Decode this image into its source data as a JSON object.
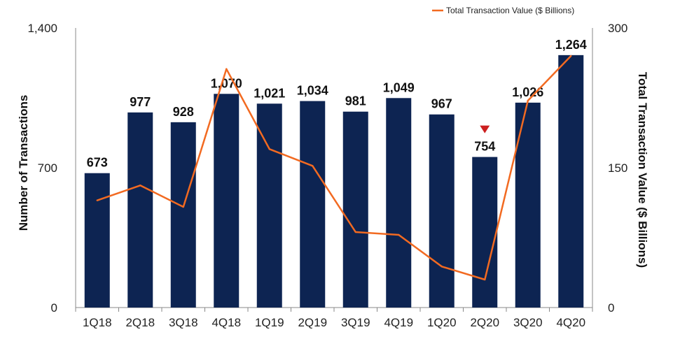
{
  "chart_data": {
    "type": "bar",
    "title": "",
    "categories": [
      "1Q18",
      "2Q18",
      "3Q18",
      "4Q18",
      "1Q19",
      "2Q19",
      "3Q19",
      "4Q19",
      "1Q20",
      "2Q20",
      "3Q20",
      "4Q20"
    ],
    "series": [
      {
        "name": "Number of Transactions",
        "type": "bar",
        "axis": "left",
        "values": [
          673,
          977,
          928,
          1070,
          1021,
          1034,
          981,
          1049,
          967,
          754,
          1026,
          1264
        ],
        "labels": [
          "673",
          "977",
          "928",
          "1,070",
          "1,021",
          "1,034",
          "981",
          "1,049",
          "967",
          "754",
          "1,026",
          "1,264"
        ],
        "color": "#0d2452"
      },
      {
        "name": "Total Transaction Value ($ Billions)",
        "type": "line",
        "axis": "right",
        "values": [
          115,
          131,
          108,
          256,
          170,
          152,
          81,
          78,
          44,
          30,
          222,
          270
        ],
        "color": "#f26a21"
      }
    ],
    "y_left": {
      "label": "Number of Transactions",
      "ylim": [
        0,
        1400
      ],
      "ticks": [
        0,
        700,
        1400
      ],
      "tick_labels": [
        "0",
        "700",
        "1,400"
      ]
    },
    "y_right": {
      "label": "Total Transaction Value ($ Billions)",
      "ylim": [
        0,
        300
      ],
      "ticks": [
        0,
        150,
        300
      ],
      "tick_labels": [
        "0",
        "150",
        "300"
      ]
    },
    "legend": {
      "position": "top-right",
      "entries": [
        "Total Transaction Value ($ Billions)"
      ]
    },
    "annotations": [
      {
        "type": "down-triangle-marker",
        "category": "2Q20",
        "color": "#cc1f1f"
      }
    ],
    "grid": false
  }
}
